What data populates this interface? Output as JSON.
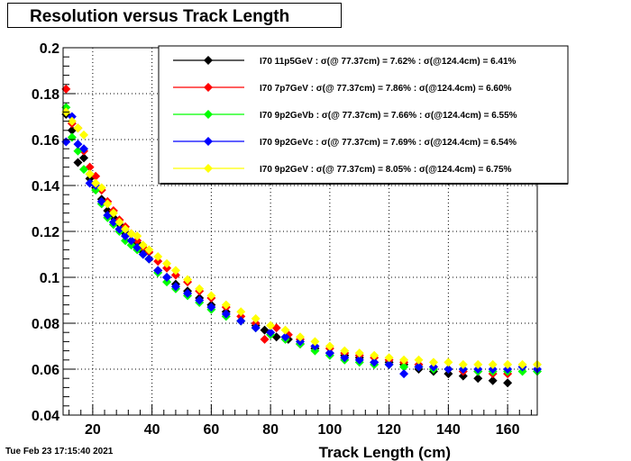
{
  "chart_title": "Resolution versus Track Length",
  "timestamp": "Tue Feb 23 17:15:40 2021",
  "chart_data": {
    "type": "scatter",
    "title": "Resolution versus Track Length",
    "xlabel": "Track Length (cm)",
    "ylabel": "",
    "xlim": [
      10,
      170
    ],
    "ylim": [
      0.04,
      0.2
    ],
    "x_ticks": [
      20,
      40,
      60,
      80,
      100,
      120,
      140,
      160
    ],
    "y_ticks": [
      0.04,
      0.06,
      0.08,
      0.1,
      0.12,
      0.14,
      0.16,
      0.18,
      0.2
    ],
    "y_tick_labels": [
      "0.04",
      "0.06",
      "0.08",
      "0.1",
      "0.12",
      "0.14",
      "0.16",
      "0.18",
      "0.2"
    ],
    "grid": true,
    "legend_position": "top-right",
    "series": [
      {
        "name": "I70  11p5GeV : σ(@ 77.37cm) =  7.62% : σ(@124.4cm) =  6.41%",
        "color": "#000000",
        "x": [
          11,
          13,
          15,
          17,
          19,
          21,
          23,
          25,
          27,
          29,
          31,
          33,
          35,
          37,
          39,
          42,
          45,
          48,
          52,
          56,
          60,
          65,
          70,
          75,
          78,
          82,
          86,
          90,
          95,
          100,
          105,
          110,
          115,
          120,
          125,
          130,
          135,
          140,
          145,
          150,
          155,
          160
        ],
        "y": [
          0.171,
          0.164,
          0.15,
          0.152,
          0.143,
          0.139,
          0.134,
          0.129,
          0.126,
          0.123,
          0.119,
          0.116,
          0.115,
          0.111,
          0.108,
          0.103,
          0.1,
          0.097,
          0.094,
          0.091,
          0.088,
          0.085,
          0.081,
          0.079,
          0.077,
          0.074,
          0.073,
          0.071,
          0.069,
          0.067,
          0.066,
          0.065,
          0.063,
          0.063,
          0.062,
          0.06,
          0.059,
          0.058,
          0.057,
          0.056,
          0.055,
          0.054
        ]
      },
      {
        "name": "I70  7p7GeV : σ(@ 77.37cm) =  7.86% : σ(@124.4cm) =  6.60%",
        "color": "#ff0000",
        "x": [
          11,
          13,
          15,
          17,
          19,
          21,
          23,
          25,
          27,
          29,
          31,
          33,
          35,
          37,
          39,
          42,
          45,
          48,
          52,
          56,
          60,
          65,
          70,
          75,
          78,
          82,
          86,
          90,
          95,
          100,
          105,
          110,
          115,
          120,
          125,
          130,
          135,
          140,
          145,
          150,
          155,
          160
        ],
        "y": [
          0.182,
          0.167,
          0.165,
          0.155,
          0.148,
          0.144,
          0.138,
          0.133,
          0.129,
          0.125,
          0.122,
          0.119,
          0.116,
          0.113,
          0.111,
          0.107,
          0.104,
          0.101,
          0.098,
          0.094,
          0.091,
          0.087,
          0.083,
          0.08,
          0.073,
          0.078,
          0.075,
          0.073,
          0.07,
          0.069,
          0.067,
          0.066,
          0.065,
          0.064,
          0.063,
          0.062,
          0.061,
          0.06,
          0.059,
          0.059,
          0.058,
          0.058
        ]
      },
      {
        "name": "I70  9p2GeVb : σ(@ 77.37cm) =  7.66% : σ(@124.4cm) =  6.55%",
        "color": "#00ff00",
        "x": [
          11,
          13,
          15,
          17,
          19,
          21,
          23,
          25,
          27,
          29,
          31,
          33,
          35,
          37,
          39,
          42,
          45,
          48,
          52,
          56,
          60,
          65,
          70,
          75,
          80,
          85,
          90,
          95,
          100,
          105,
          110,
          115,
          120,
          125,
          130,
          135,
          140,
          145,
          150,
          155,
          160,
          165,
          170
        ],
        "y": [
          0.174,
          0.161,
          0.155,
          0.147,
          0.145,
          0.138,
          0.132,
          0.126,
          0.123,
          0.12,
          0.116,
          0.114,
          0.112,
          0.11,
          0.108,
          0.102,
          0.098,
          0.095,
          0.092,
          0.089,
          0.086,
          0.083,
          0.081,
          0.078,
          0.075,
          0.073,
          0.071,
          0.068,
          0.066,
          0.064,
          0.063,
          0.062,
          0.062,
          0.061,
          0.061,
          0.06,
          0.06,
          0.06,
          0.059,
          0.059,
          0.059,
          0.059,
          0.059
        ]
      },
      {
        "name": "I70  9p2GeVc : σ(@ 77.37cm) =  7.69% : σ(@124.4cm) =  6.54%",
        "color": "#0000ff",
        "x": [
          11,
          13,
          15,
          17,
          19,
          21,
          23,
          25,
          27,
          29,
          31,
          33,
          35,
          37,
          39,
          42,
          45,
          48,
          52,
          56,
          60,
          65,
          70,
          75,
          80,
          85,
          90,
          95,
          100,
          105,
          110,
          115,
          120,
          125,
          130,
          135,
          140,
          145,
          150,
          155,
          160,
          165,
          170
        ],
        "y": [
          0.159,
          0.17,
          0.158,
          0.156,
          0.141,
          0.14,
          0.133,
          0.127,
          0.124,
          0.121,
          0.118,
          0.116,
          0.113,
          0.11,
          0.108,
          0.103,
          0.1,
          0.096,
          0.093,
          0.09,
          0.087,
          0.084,
          0.081,
          0.078,
          0.076,
          0.074,
          0.072,
          0.07,
          0.067,
          0.065,
          0.064,
          0.063,
          0.062,
          0.058,
          0.061,
          0.061,
          0.06,
          0.06,
          0.06,
          0.06,
          0.06,
          0.061,
          0.06
        ]
      },
      {
        "name": "I70  9p2GeV : σ(@ 77.37cm) =  8.05% : σ(@124.4cm) =  6.75%",
        "color": "#ffff00",
        "x": [
          11,
          13,
          15,
          17,
          19,
          21,
          23,
          25,
          27,
          29,
          31,
          33,
          35,
          37,
          39,
          42,
          45,
          48,
          52,
          56,
          60,
          65,
          70,
          75,
          80,
          85,
          90,
          95,
          100,
          105,
          110,
          115,
          120,
          125,
          130,
          135,
          140,
          145,
          150,
          155,
          160,
          165,
          170
        ],
        "y": [
          0.172,
          0.168,
          0.165,
          0.162,
          0.145,
          0.141,
          0.139,
          0.132,
          0.128,
          0.124,
          0.121,
          0.119,
          0.118,
          0.114,
          0.112,
          0.109,
          0.106,
          0.103,
          0.099,
          0.095,
          0.092,
          0.088,
          0.085,
          0.082,
          0.079,
          0.077,
          0.074,
          0.072,
          0.07,
          0.068,
          0.067,
          0.066,
          0.065,
          0.064,
          0.064,
          0.063,
          0.063,
          0.062,
          0.062,
          0.062,
          0.062,
          0.062,
          0.062
        ]
      }
    ]
  }
}
